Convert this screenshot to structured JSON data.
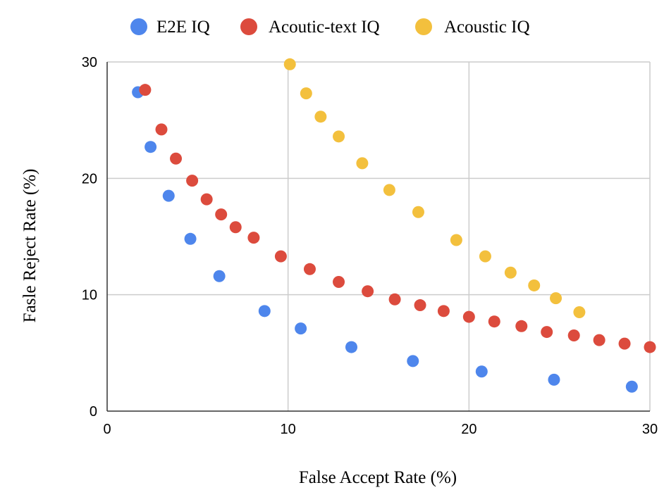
{
  "chart_data": {
    "type": "scatter",
    "title": "",
    "xlabel": "False Accept Rate (%)",
    "ylabel": "Fasle Reject Rate (%)",
    "xlim": [
      0,
      30
    ],
    "ylim": [
      0,
      30
    ],
    "xticks": [
      "0",
      "10",
      "20",
      "30"
    ],
    "yticks": [
      "0",
      "10",
      "20",
      "30"
    ],
    "grid": true,
    "legend_position": "top",
    "series": [
      {
        "name": "E2E IQ",
        "color": "#4e86ec",
        "points": [
          [
            1.7,
            27.4
          ],
          [
            2.4,
            22.7
          ],
          [
            3.4,
            18.5
          ],
          [
            4.6,
            14.8
          ],
          [
            6.2,
            11.6
          ],
          [
            8.7,
            8.6
          ],
          [
            10.7,
            7.1
          ],
          [
            13.5,
            5.5
          ],
          [
            16.9,
            4.3
          ],
          [
            20.7,
            3.4
          ],
          [
            24.7,
            2.7
          ],
          [
            29.0,
            2.1
          ]
        ]
      },
      {
        "name": "Acoutic-text IQ",
        "color": "#dc4b3d",
        "points": [
          [
            2.1,
            27.6
          ],
          [
            3.0,
            24.2
          ],
          [
            3.8,
            21.7
          ],
          [
            4.7,
            19.8
          ],
          [
            5.5,
            18.2
          ],
          [
            6.3,
            16.9
          ],
          [
            7.1,
            15.8
          ],
          [
            8.1,
            14.9
          ],
          [
            9.6,
            13.3
          ],
          [
            11.2,
            12.2
          ],
          [
            12.8,
            11.1
          ],
          [
            14.4,
            10.3
          ],
          [
            15.9,
            9.6
          ],
          [
            17.3,
            9.1
          ],
          [
            18.6,
            8.6
          ],
          [
            20.0,
            8.1
          ],
          [
            21.4,
            7.7
          ],
          [
            22.9,
            7.3
          ],
          [
            24.3,
            6.8
          ],
          [
            25.8,
            6.5
          ],
          [
            27.2,
            6.1
          ],
          [
            28.6,
            5.8
          ],
          [
            30.0,
            5.5
          ]
        ]
      },
      {
        "name": "Acoustic IQ",
        "color": "#f3c03d",
        "points": [
          [
            10.1,
            29.8
          ],
          [
            11.0,
            27.3
          ],
          [
            11.8,
            25.3
          ],
          [
            12.8,
            23.6
          ],
          [
            14.1,
            21.3
          ],
          [
            15.6,
            19.0
          ],
          [
            17.2,
            17.1
          ],
          [
            19.3,
            14.7
          ],
          [
            20.9,
            13.3
          ],
          [
            22.3,
            11.9
          ],
          [
            23.6,
            10.8
          ],
          [
            24.8,
            9.7
          ],
          [
            26.1,
            8.5
          ]
        ]
      }
    ]
  }
}
